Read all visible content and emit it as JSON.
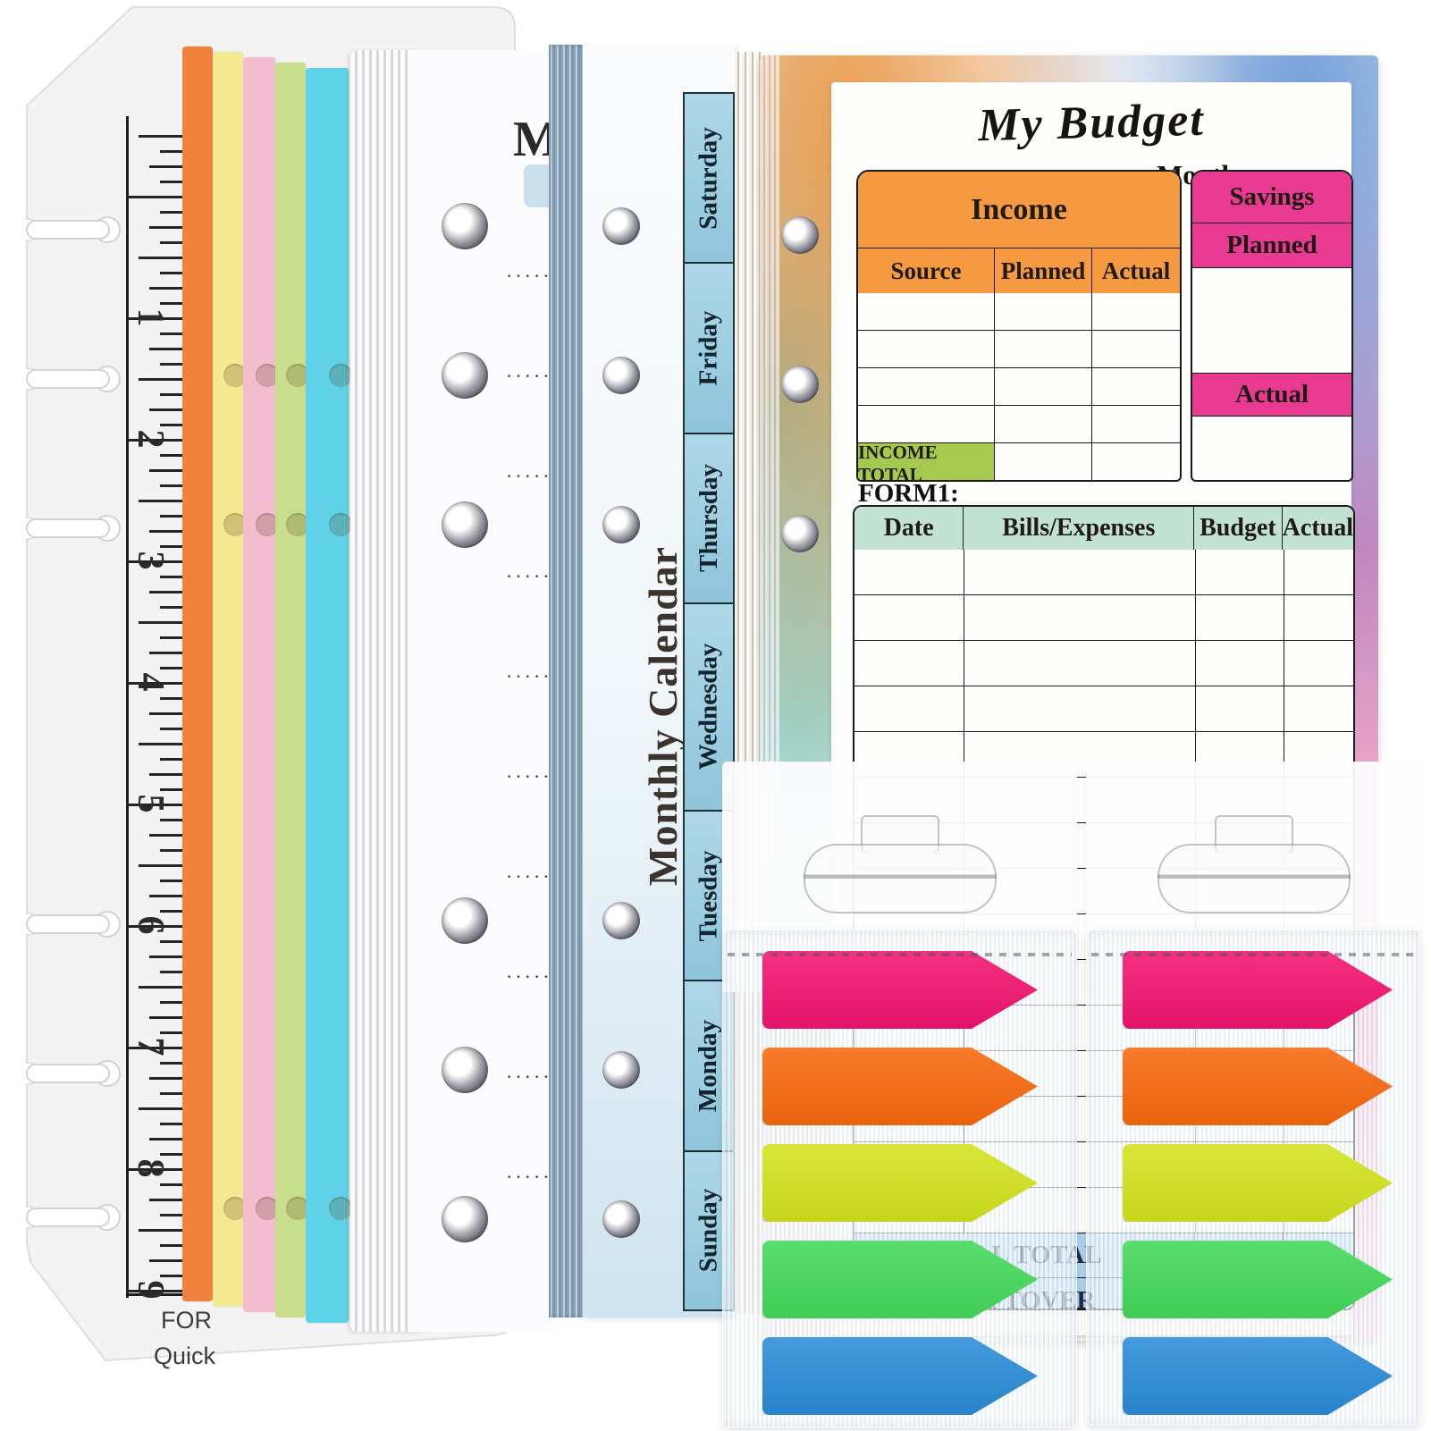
{
  "scene": {
    "description": "Product photo of A7 budget binder refill kit: snap-in ruler bookmark, colored divider sheets, monthly budget page stack, rotated Monthly Calendar pad, My Budget form sheet, and two packs of neon arrow index flags",
    "background": "#ffffff"
  },
  "ruler_card": {
    "unit_numbers": [
      "1",
      "2",
      "3",
      "4",
      "5",
      "6",
      "7",
      "8",
      "9"
    ],
    "bottom_text_line1": "FOR",
    "bottom_text_line2": "Quick"
  },
  "divider_sheets": [
    {
      "name": "orange",
      "color": "#F0823D"
    },
    {
      "name": "yellow",
      "color": "#F2E991"
    },
    {
      "name": "pink",
      "color": "#F3BCD0"
    },
    {
      "name": "green",
      "color": "#C8DE8D"
    },
    {
      "name": "cyan",
      "color": "#5FD2E7"
    }
  ],
  "monthly_pages_stack": {
    "title_partial": "M",
    "dotted_line": "·····",
    "dotted_rows": 10
  },
  "calendar_stack": {
    "title": "Monthly Calendar",
    "weekday_cell_color": "#A5D2E4",
    "weekdays": [
      "Saturday",
      "Friday",
      "Thursday",
      "Wednesday",
      "Tuesday",
      "Monday",
      "Sunday"
    ]
  },
  "budget_sheet": {
    "title": "My Budget",
    "month_label": "Month:",
    "income_table": {
      "title": "Income",
      "header_color": "#F59A40",
      "columns": [
        "Source",
        "Planned",
        "Actual"
      ],
      "data_rows": 4,
      "total_label": "INCOME TOTAL",
      "total_color": "#A6C84F"
    },
    "savings_table": {
      "title": "Savings",
      "header_color": "#E93A92",
      "row_labels": [
        "Planned",
        "Actual"
      ]
    },
    "form1": {
      "label": "FORM1:",
      "header_color": "#C2E2D3",
      "columns": [
        "Date",
        "Bills/Expenses",
        "Budget",
        "Actual"
      ],
      "data_rows": 15,
      "summary_rows": [
        "BILL TOTAL",
        "LEFTOVER"
      ],
      "summary_color": "#A9D2F1"
    }
  },
  "flag_packs": {
    "count": 2,
    "flag_colors": [
      {
        "name": "pink",
        "hex": "#F2146F"
      },
      {
        "name": "orange",
        "hex": "#F8690F"
      },
      {
        "name": "lime",
        "hex": "#D3E31E"
      },
      {
        "name": "green",
        "hex": "#44D95B"
      },
      {
        "name": "blue",
        "hex": "#2A8CD7"
      }
    ]
  }
}
